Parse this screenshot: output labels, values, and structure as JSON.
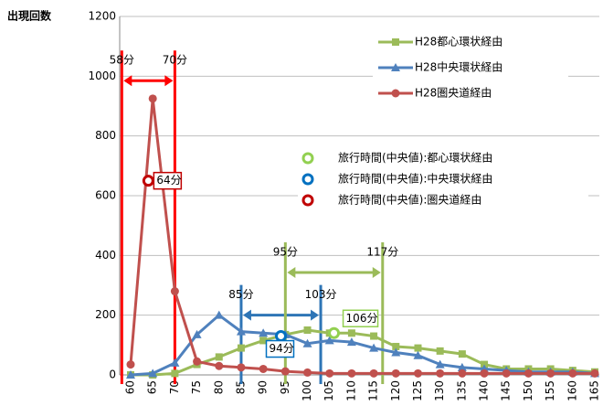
{
  "chart_data": {
    "type": "line",
    "y_label": "出現回数",
    "x": [
      60,
      65,
      70,
      75,
      80,
      85,
      90,
      95,
      100,
      105,
      110,
      115,
      120,
      125,
      130,
      135,
      140,
      145,
      150,
      155,
      160,
      165
    ],
    "xlim": [
      60,
      165
    ],
    "ylim": [
      0,
      1200
    ],
    "yticks": [
      0,
      200,
      400,
      600,
      800,
      1000,
      1200
    ],
    "grid": true,
    "series": [
      {
        "name": "H28都心環状経由",
        "color": "#9bbb59",
        "marker": "square",
        "values": [
          0,
          0,
          5,
          35,
          60,
          90,
          115,
          135,
          150,
          140,
          140,
          130,
          95,
          90,
          80,
          70,
          35,
          20,
          20,
          20,
          15,
          10
        ]
      },
      {
        "name": "H28中央環状経由",
        "color": "#4f81bd",
        "marker": "triangle",
        "values": [
          0,
          5,
          40,
          135,
          200,
          145,
          140,
          135,
          105,
          115,
          110,
          90,
          75,
          65,
          35,
          25,
          20,
          15,
          10,
          10,
          10,
          5
        ]
      },
      {
        "name": "H28圏央道経由",
        "color": "#c0504d",
        "marker": "circle",
        "values": [
          35,
          925,
          280,
          45,
          30,
          25,
          20,
          12,
          8,
          5,
          5,
          5,
          5,
          5,
          5,
          5,
          5,
          5,
          5,
          5,
          5,
          5
        ]
      }
    ],
    "medians": [
      {
        "name": "旅行時間(中央値):都心環状経由",
        "color": "#92d050",
        "x": {
          "value": 106,
          "label": "106分"
        },
        "y": 140
      },
      {
        "name": "旅行時間(中央値):中央環状経由",
        "color": "#0070c0",
        "x": {
          "value": 94,
          "label": "94分"
        },
        "y": 130
      },
      {
        "name": "旅行時間(中央値):圏央道経由",
        "color": "#c00000",
        "x": {
          "value": 64,
          "label": "64分"
        },
        "y": 650
      }
    ],
    "ranges": [
      {
        "color": "#ff0000",
        "start": {
          "value": 58,
          "label": "58分"
        },
        "end": {
          "value": 70,
          "label": "70分"
        },
        "arrow_y": 985
      },
      {
        "color": "#2e75b6",
        "start": {
          "value": 85,
          "label": "85分"
        },
        "end": {
          "value": 103,
          "label": "103分"
        },
        "arrow_y": 200
      },
      {
        "color": "#9bbb59",
        "start": {
          "value": 95,
          "label": "95分"
        },
        "end": {
          "value": 117,
          "label": "117分"
        },
        "arrow_y": 343
      }
    ]
  }
}
